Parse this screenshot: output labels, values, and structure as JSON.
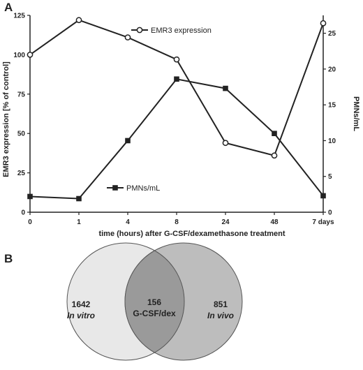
{
  "figure": {
    "panel_a_letter": "A",
    "panel_b_letter": "B"
  },
  "chart_data": {
    "type": "line",
    "categories": [
      "0",
      "1",
      "4",
      "8",
      "24",
      "48",
      "7 days"
    ],
    "xlabel": "time (hours) after G-CSF/dexamethasone treatment",
    "ylabel": "EMR3 expression [% of control]",
    "y2label": "PMNs/mL",
    "ylim": [
      0,
      125
    ],
    "y2lim": [
      0,
      27.5
    ],
    "yticks": [
      "0",
      "25",
      "50",
      "75",
      "100",
      "125"
    ],
    "y2ticks": [
      "0",
      "5",
      "10",
      "15",
      "20",
      "25"
    ],
    "grid": false,
    "series": [
      {
        "name": "EMR3 expression",
        "axis": "left",
        "marker": "open-circle",
        "values": [
          100,
          122,
          111,
          97,
          44,
          36,
          120
        ]
      },
      {
        "name": "PMNs/mL",
        "axis": "right",
        "marker": "filled-square",
        "values": [
          2.2,
          1.9,
          10.0,
          18.6,
          17.3,
          11.0,
          2.3
        ]
      }
    ]
  },
  "venn": {
    "left": {
      "count": "1642",
      "label": "In vitro",
      "color": "#e8e8e8"
    },
    "overlap": {
      "count": "156",
      "label": "G-CSF/dex",
      "color": "#9a9a9a"
    },
    "right": {
      "count": "851",
      "label": "In vivo",
      "color": "#bdbdbd"
    }
  }
}
